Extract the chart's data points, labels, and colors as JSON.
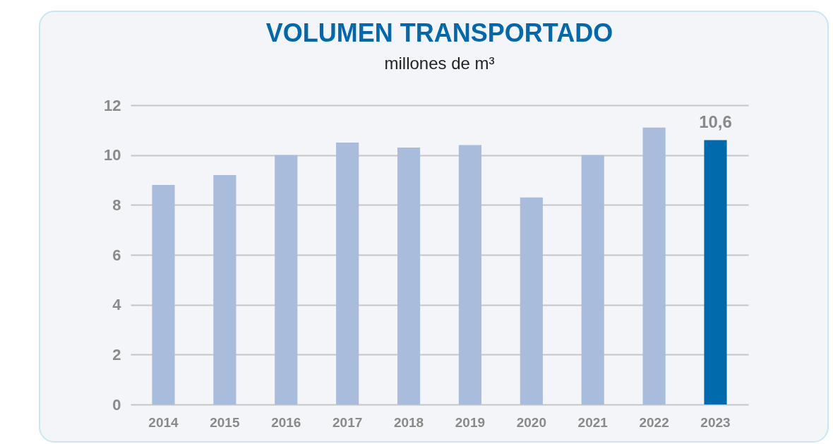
{
  "chart_data": {
    "type": "bar",
    "title": "VOLUMEN TRANSPORTADO",
    "subtitle": "millones de m³",
    "categories": [
      "2014",
      "2015",
      "2016",
      "2017",
      "2018",
      "2019",
      "2020",
      "2021",
      "2022",
      "2023"
    ],
    "values": [
      8.8,
      9.2,
      10.0,
      10.5,
      10.3,
      10.4,
      8.3,
      10.0,
      11.1,
      10.6
    ],
    "colors": [
      "#a9bcdc",
      "#a9bcdc",
      "#a9bcdc",
      "#a9bcdc",
      "#a9bcdc",
      "#a9bcdc",
      "#a9bcdc",
      "#a9bcdc",
      "#a9bcdc",
      "#006aad"
    ],
    "value_labels": [
      null,
      null,
      null,
      null,
      null,
      null,
      null,
      null,
      null,
      "10,6"
    ],
    "ylim": [
      0,
      12
    ],
    "yticks": [
      0,
      2,
      4,
      6,
      8,
      10,
      12
    ],
    "grid": "y"
  }
}
